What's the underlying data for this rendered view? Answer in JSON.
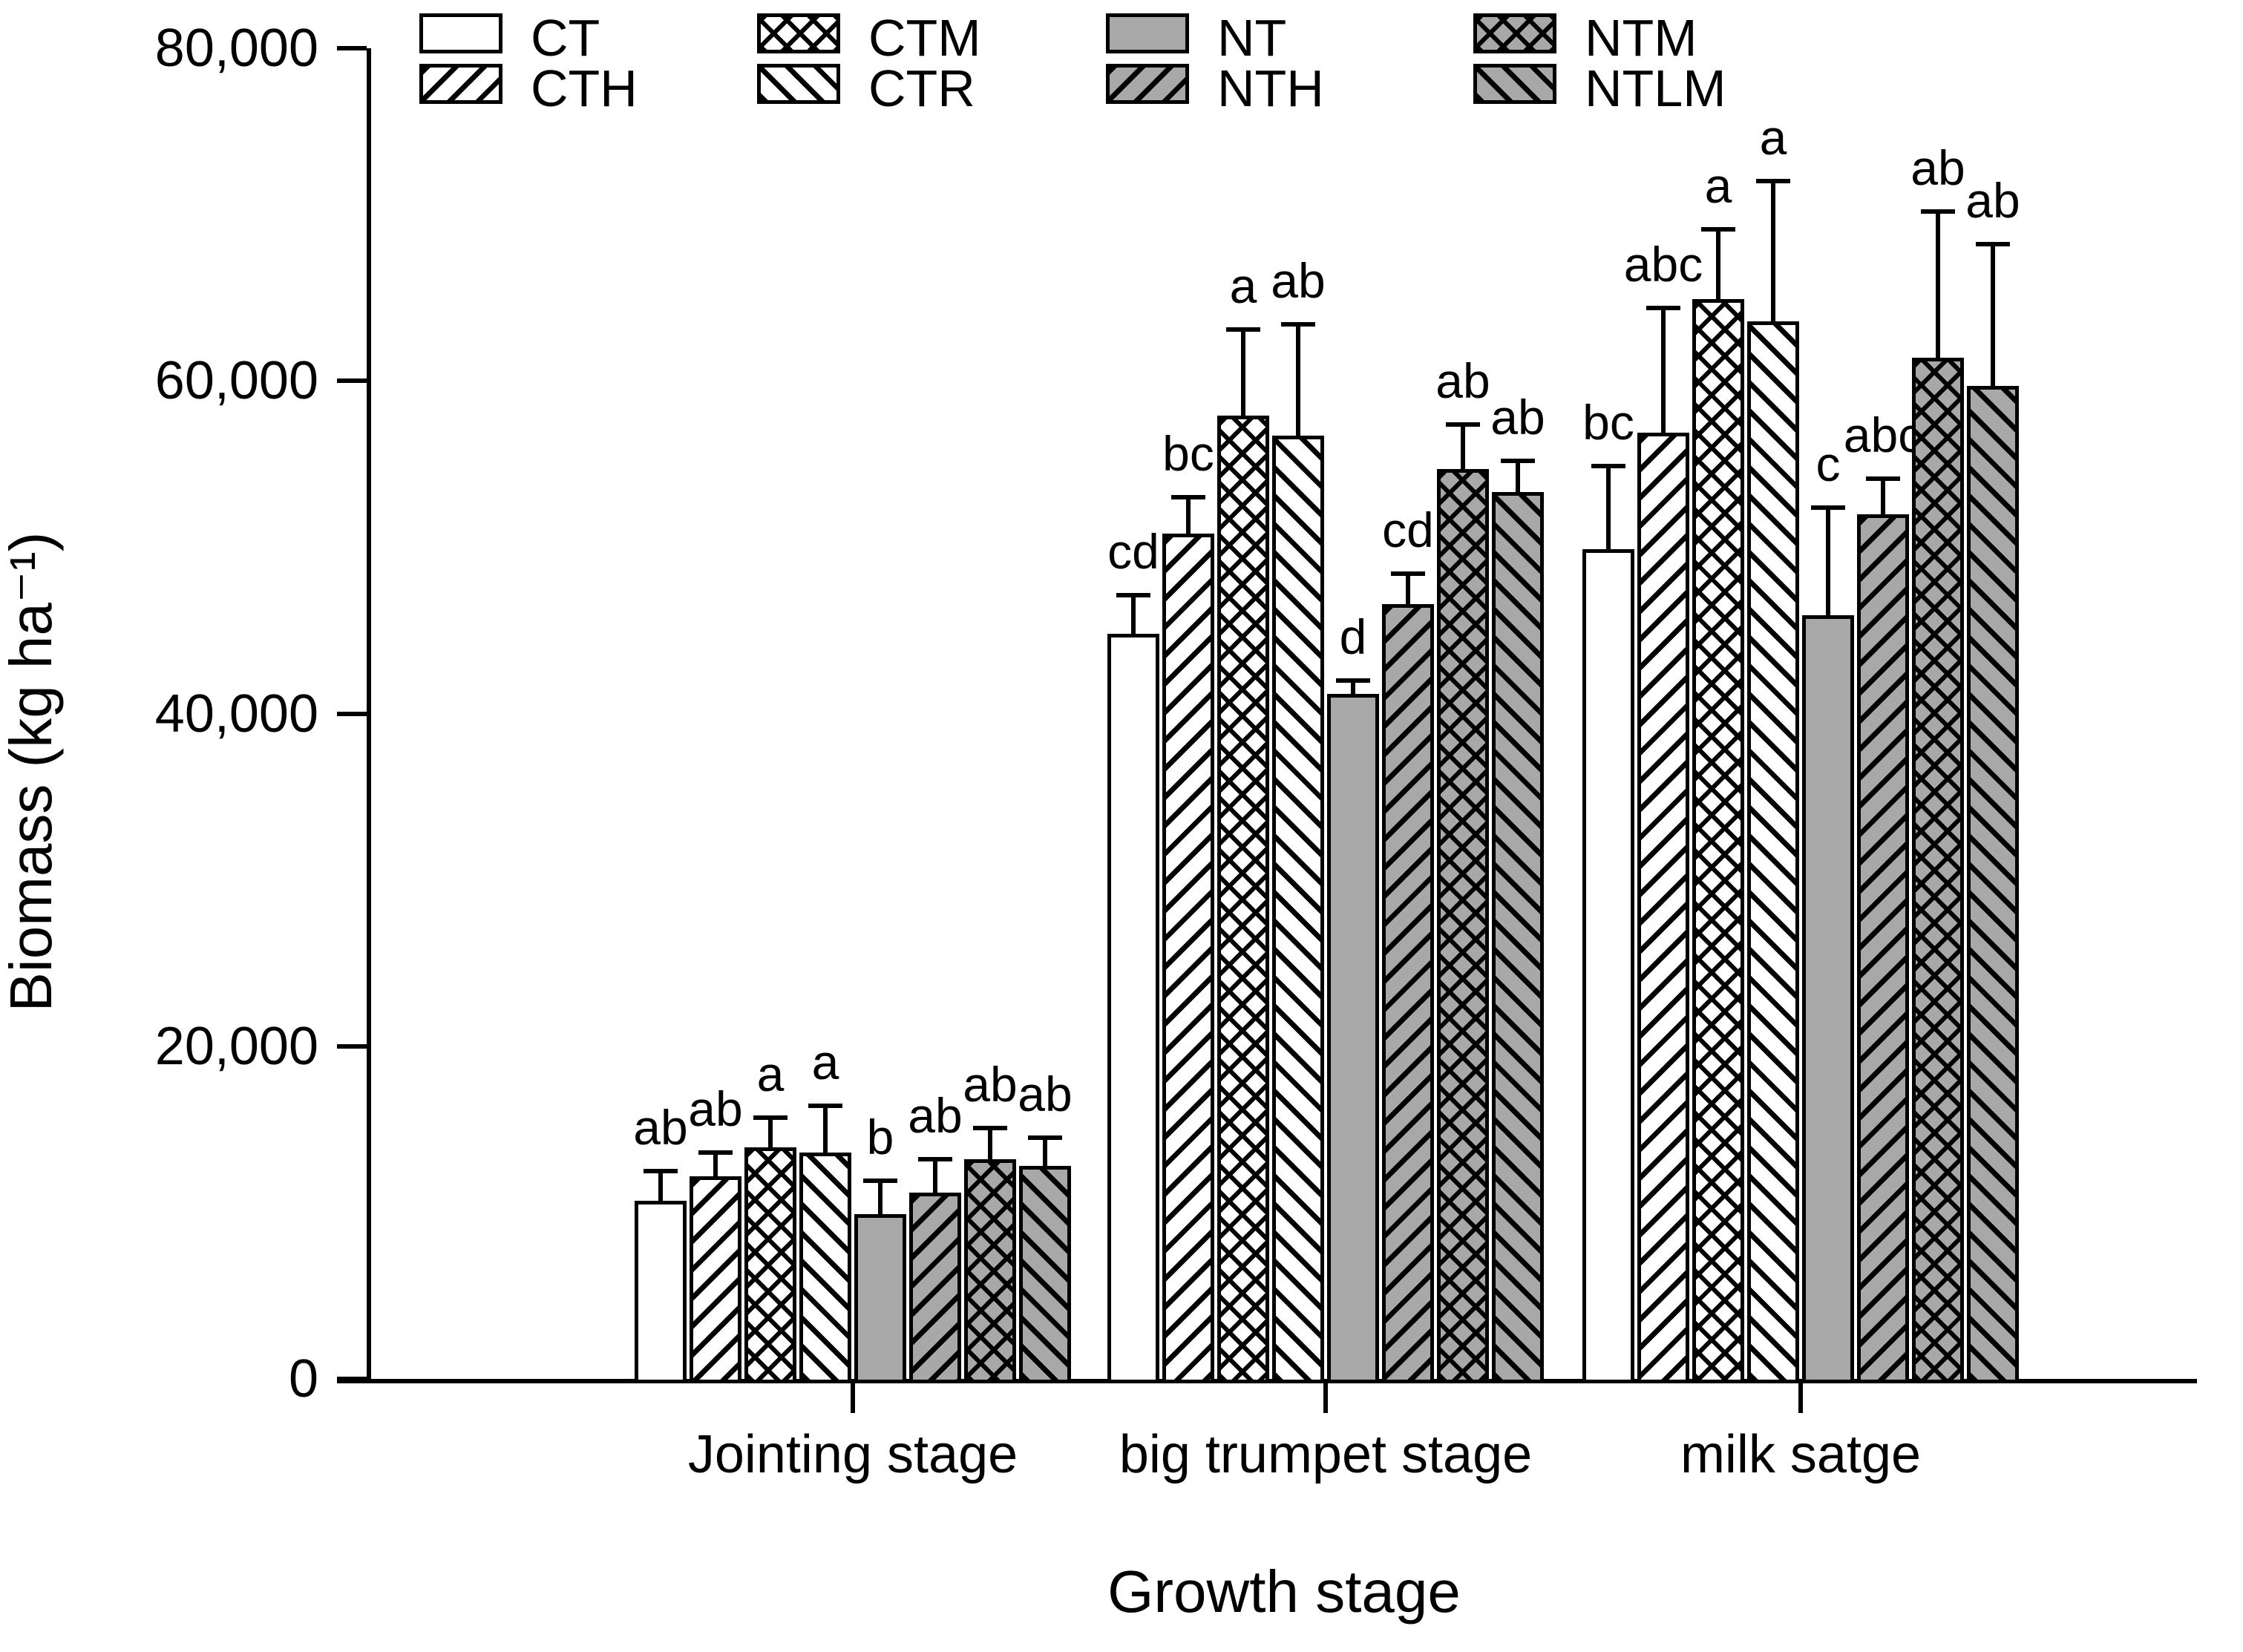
{
  "chart_data": {
    "type": "bar",
    "title": "",
    "xlabel": "Growth stage",
    "ylabel": "Biomass (kg ha⁻¹)",
    "ylim": [
      0,
      80000
    ],
    "grid": false,
    "legend_position": "top",
    "yticks": [
      {
        "value": 0,
        "label": "0"
      },
      {
        "value": 20000,
        "label": "20,000"
      },
      {
        "value": 40000,
        "label": "40,000"
      },
      {
        "value": 60000,
        "label": "60,000"
      },
      {
        "value": 80000,
        "label": "80,000"
      }
    ],
    "categories": [
      "Jointing stage",
      "big trumpet stage",
      "milk satge"
    ],
    "series": [
      {
        "name": "CT",
        "fill": "#ffffff",
        "pattern": "plain",
        "values": [
          10700,
          44800,
          49900
        ],
        "errors": [
          1800,
          2300,
          5000
        ],
        "letters": [
          "ab",
          "cd",
          "bc"
        ]
      },
      {
        "name": "CTH",
        "fill": "#ffffff",
        "pattern": "diag-up",
        "values": [
          12200,
          50800,
          56900
        ],
        "errors": [
          1400,
          2200,
          7500
        ],
        "letters": [
          "ab",
          "bc",
          "abc"
        ]
      },
      {
        "name": "CTM",
        "fill": "#ffffff",
        "pattern": "cross",
        "values": [
          13900,
          57900,
          64900
        ],
        "errors": [
          1800,
          5200,
          4200
        ],
        "letters": [
          "a",
          "a",
          "a"
        ]
      },
      {
        "name": "CTR",
        "fill": "#ffffff",
        "pattern": "diag-down",
        "values": [
          13600,
          56700,
          63600
        ],
        "errors": [
          2800,
          6700,
          8400
        ],
        "letters": [
          "a",
          "ab",
          "a"
        ]
      },
      {
        "name": "NT",
        "fill": "#a8a8a8",
        "pattern": "plain",
        "values": [
          9900,
          41200,
          45900
        ],
        "errors": [
          2000,
          800,
          6500
        ],
        "letters": [
          "b",
          "d",
          "c"
        ]
      },
      {
        "name": "NTH",
        "fill": "#a8a8a8",
        "pattern": "diag-up",
        "values": [
          11200,
          46600,
          52000
        ],
        "errors": [
          2000,
          1800,
          2100
        ],
        "letters": [
          "ab",
          "cd",
          "abc"
        ]
      },
      {
        "name": "NTM",
        "fill": "#a8a8a8",
        "pattern": "cross",
        "values": [
          13200,
          54700,
          61400
        ],
        "errors": [
          1900,
          2700,
          8800
        ],
        "letters": [
          "ab",
          "ab",
          "ab"
        ]
      },
      {
        "name": "NTLM",
        "fill": "#a8a8a8",
        "pattern": "diag-down",
        "values": [
          12800,
          53300,
          59700
        ],
        "errors": [
          1700,
          1900,
          8500
        ],
        "letters": [
          "ab",
          "ab",
          "ab"
        ]
      }
    ],
    "legend": {
      "rows": [
        [
          "CT",
          "CTM",
          "NT",
          "NTM"
        ],
        [
          "CTH",
          "CTR",
          "NTH",
          "NTLM"
        ]
      ]
    },
    "colors": {
      "stroke": "#000000",
      "white_fill": "#ffffff",
      "gray_fill": "#a8a8a8",
      "background": "#ffffff"
    }
  }
}
